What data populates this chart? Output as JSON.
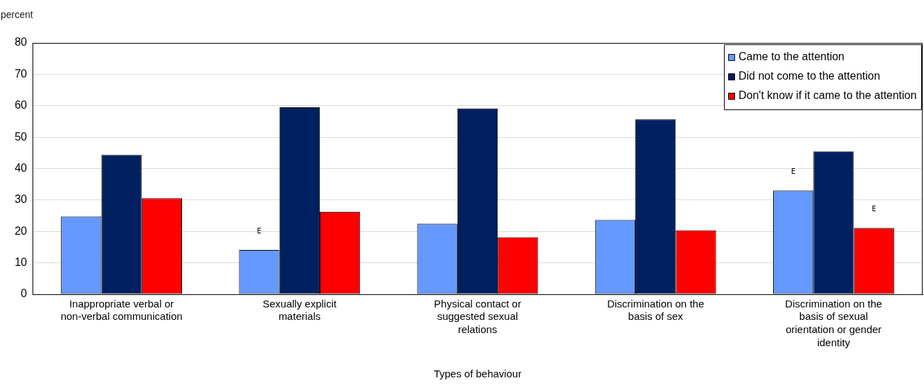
{
  "chart_data": {
    "type": "bar",
    "ylabel": "percent",
    "xlabel": "Types of behaviour",
    "categories": [
      "Inappropriate verbal or non-verbal communication",
      "Sexually explicit materials",
      "Physical contact or suggested sexual relations",
      "Discrimination on the basis of sex",
      "Discrimination on the basis of sexual orientation or gender identity"
    ],
    "series": [
      {
        "name": "Came to the attention",
        "color": "#6699ff",
        "values": [
          24.8,
          14.1,
          22.4,
          23.7,
          33.0
        ],
        "value_labels": [
          null,
          "E",
          null,
          null,
          "E"
        ]
      },
      {
        "name": "Did not come to the attention",
        "color": "#002060",
        "values": [
          44.4,
          59.5,
          59.2,
          55.7,
          45.5
        ]
      },
      {
        "name": "Don't know if it came to the attention",
        "color": "#ff0000",
        "values": [
          30.6,
          26.3,
          18.2,
          20.4,
          21.1
        ],
        "value_labels": [
          null,
          null,
          null,
          null,
          "E"
        ]
      }
    ],
    "ylim": [
      0,
      80
    ],
    "yticks": [
      0,
      10,
      20,
      30,
      40,
      50,
      60,
      70,
      80
    ],
    "grid": "y",
    "legend": "top right"
  }
}
